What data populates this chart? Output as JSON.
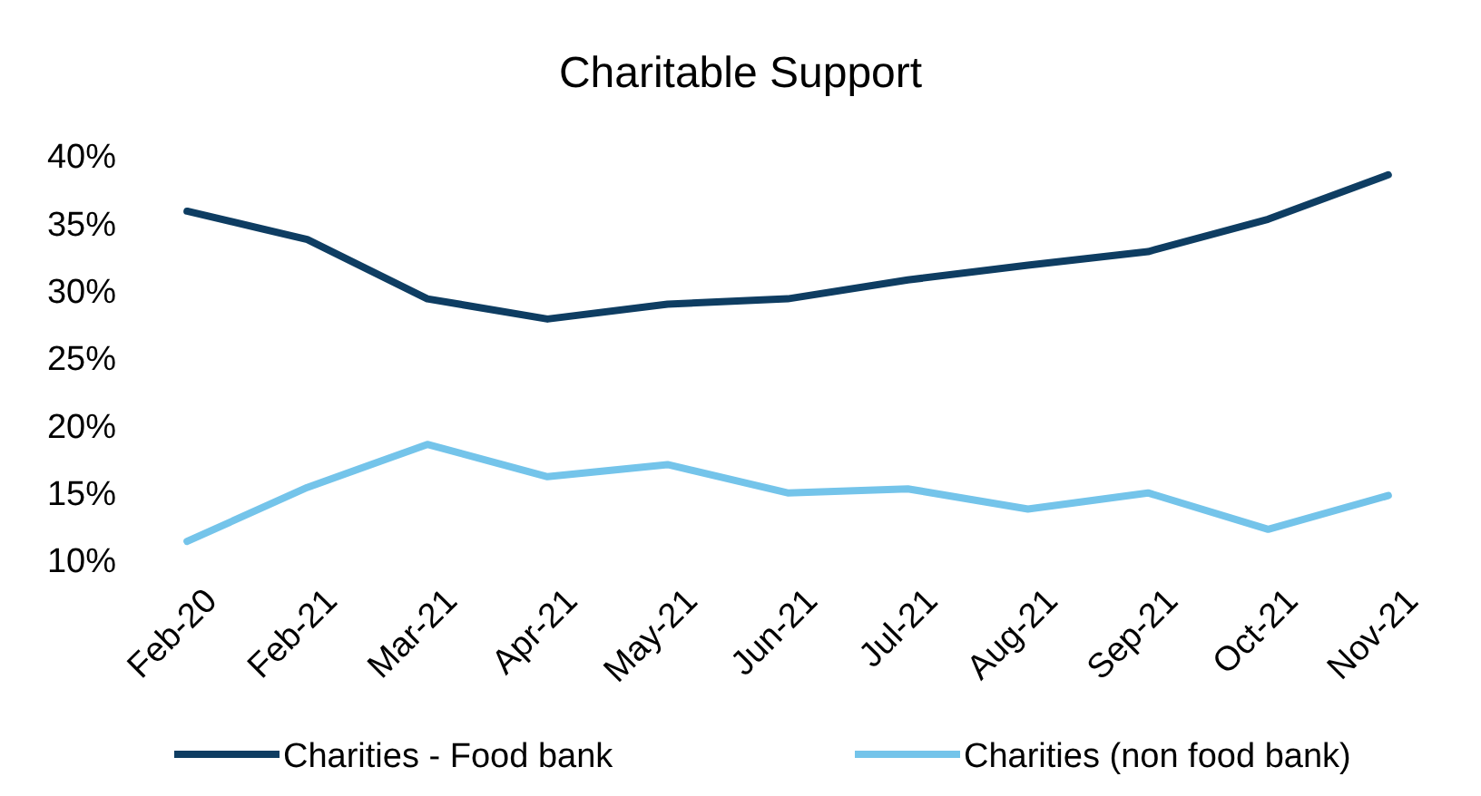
{
  "chart_data": {
    "type": "line",
    "title": "Charitable Support",
    "categories": [
      "Feb-20",
      "Feb-21",
      "Mar-21",
      "Apr-21",
      "May-21",
      "Jun-21",
      "Jul-21",
      "Aug-21",
      "Sep-21",
      "Oct-21",
      "Nov-21"
    ],
    "series": [
      {
        "name": "Charities - Food bank",
        "color": "#0e3d62",
        "values": [
          35.9,
          33.8,
          29.4,
          27.9,
          29.0,
          29.4,
          30.8,
          31.9,
          32.9,
          35.3,
          38.6
        ]
      },
      {
        "name": "Charities (non food bank)",
        "color": "#74c4ea",
        "values": [
          11.4,
          15.4,
          18.6,
          16.2,
          17.1,
          15.0,
          15.3,
          13.8,
          15.0,
          12.3,
          14.8
        ]
      }
    ],
    "ylim": [
      10,
      40
    ],
    "yticks": [
      {
        "value": 10,
        "label": "10%"
      },
      {
        "value": 15,
        "label": "15%"
      },
      {
        "value": 20,
        "label": "20%"
      },
      {
        "value": 25,
        "label": "25%"
      },
      {
        "value": 30,
        "label": "30%"
      },
      {
        "value": 35,
        "label": "35%"
      },
      {
        "value": 40,
        "label": "40%"
      }
    ],
    "grid": false,
    "legend": "bottom",
    "marker": "none",
    "line_style": "solid"
  }
}
